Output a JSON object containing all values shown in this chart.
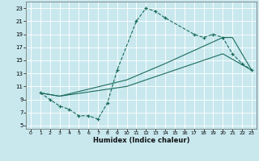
{
  "xlabel": "Humidex (Indice chaleur)",
  "bg_color": "#c8e8ee",
  "grid_color": "#b0d4d8",
  "line_color": "#1a6b5a",
  "xlim": [
    -0.5,
    23.5
  ],
  "ylim": [
    4.5,
    24.0
  ],
  "xticks": [
    0,
    1,
    2,
    3,
    4,
    5,
    6,
    7,
    8,
    9,
    10,
    11,
    12,
    13,
    14,
    15,
    16,
    17,
    18,
    19,
    20,
    21,
    22,
    23
  ],
  "yticks": [
    5,
    7,
    9,
    11,
    13,
    15,
    17,
    19,
    21,
    23
  ],
  "line1_x": [
    1,
    2,
    3,
    4,
    5,
    6,
    7,
    8,
    9,
    11,
    12,
    13,
    14,
    17,
    18,
    19,
    20,
    21,
    22,
    23
  ],
  "line1_y": [
    10,
    9,
    8,
    7.5,
    6.5,
    6.5,
    6.0,
    8.5,
    13.5,
    21,
    23,
    22.5,
    21.5,
    19.0,
    18.5,
    19.0,
    18.5,
    16.0,
    14.5,
    13.5
  ],
  "line2_x": [
    1,
    3,
    10,
    14,
    17,
    20,
    21,
    23
  ],
  "line2_y": [
    10,
    9.5,
    12,
    14.5,
    16.5,
    18.5,
    18.5,
    13.5
  ],
  "line3_x": [
    1,
    3,
    10,
    14,
    17,
    20,
    23
  ],
  "line3_y": [
    10,
    9.5,
    11,
    13.0,
    14.5,
    16.0,
    13.5
  ]
}
